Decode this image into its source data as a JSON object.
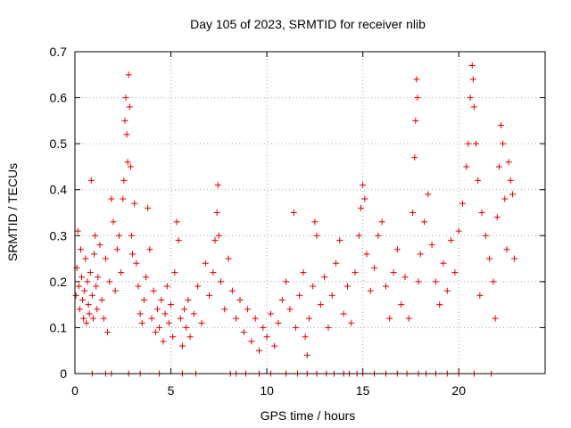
{
  "chart_data": {
    "type": "scatter",
    "title": "Day 105 of 2023, SRMTID for receiver nlib",
    "xlabel": "GPS time / hours",
    "ylabel": "SRMTID / TECUs",
    "xlim": [
      0,
      24.5
    ],
    "ylim": [
      0,
      0.7
    ],
    "xticks": [
      0,
      5,
      10,
      15,
      20
    ],
    "xtick_labels": [
      "0",
      "5",
      "10",
      "15",
      "20"
    ],
    "yticks": [
      0,
      0.1,
      0.2,
      0.3,
      0.4,
      0.5,
      0.6,
      0.7
    ],
    "ytick_labels": [
      "0",
      "0.1",
      "0.2",
      "0.3",
      "0.4",
      "0.5",
      "0.6",
      "0.7"
    ],
    "grid": true,
    "marker": "+",
    "color": "#e00000",
    "series": [
      {
        "name": "SRMTID",
        "points": [
          [
            0.05,
            0.17
          ],
          [
            0.1,
            0.23
          ],
          [
            0.15,
            0.31
          ],
          [
            0.2,
            0.19
          ],
          [
            0.25,
            0.14
          ],
          [
            0.3,
            0.27
          ],
          [
            0.35,
            0.21
          ],
          [
            0.4,
            0.16
          ],
          [
            0.45,
            0.12
          ],
          [
            0.5,
            0.18
          ],
          [
            0.55,
            0.25
          ],
          [
            0.6,
            0.11
          ],
          [
            0.65,
            0.2
          ],
          [
            0.7,
            0.15
          ],
          [
            0.75,
            0.13
          ],
          [
            0.8,
            0.22
          ],
          [
            0.85,
            0.42
          ],
          [
            0.9,
            0.17
          ],
          [
            0.95,
            0.12
          ],
          [
            1.0,
            0.26
          ],
          [
            1.05,
            0.3
          ],
          [
            1.1,
            0.19
          ],
          [
            1.15,
            0.14
          ],
          [
            1.2,
            0.21
          ],
          [
            1.3,
            0.28
          ],
          [
            1.4,
            0.16
          ],
          [
            1.5,
            0.12
          ],
          [
            1.6,
            0.25
          ],
          [
            1.7,
            0.09
          ],
          [
            1.8,
            0.2
          ],
          [
            1.9,
            0.38
          ],
          [
            2.0,
            0.33
          ],
          [
            2.1,
            0.18
          ],
          [
            2.2,
            0.27
          ],
          [
            2.3,
            0.3
          ],
          [
            2.4,
            0.22
          ],
          [
            2.5,
            0.38
          ],
          [
            2.55,
            0.42
          ],
          [
            2.6,
            0.55
          ],
          [
            2.65,
            0.6
          ],
          [
            2.7,
            0.52
          ],
          [
            2.75,
            0.46
          ],
          [
            2.8,
            0.65
          ],
          [
            2.85,
            0.58
          ],
          [
            2.9,
            0.45
          ],
          [
            2.95,
            0.3
          ],
          [
            3.0,
            0.26
          ],
          [
            3.1,
            0.37
          ],
          [
            3.2,
            0.24
          ],
          [
            3.3,
            0.19
          ],
          [
            3.4,
            0.13
          ],
          [
            3.5,
            0.11
          ],
          [
            3.6,
            0.16
          ],
          [
            3.7,
            0.21
          ],
          [
            3.8,
            0.36
          ],
          [
            3.9,
            0.27
          ],
          [
            4.0,
            0.12
          ],
          [
            4.1,
            0.18
          ],
          [
            4.2,
            0.09
          ],
          [
            4.3,
            0.14
          ],
          [
            4.4,
            0.1
          ],
          [
            4.5,
            0.16
          ],
          [
            4.6,
            0.07
          ],
          [
            4.7,
            0.13
          ],
          [
            4.8,
            0.19
          ],
          [
            4.9,
            0.11
          ],
          [
            5.0,
            0.15
          ],
          [
            5.1,
            0.08
          ],
          [
            5.2,
            0.22
          ],
          [
            5.3,
            0.33
          ],
          [
            5.4,
            0.29
          ],
          [
            5.5,
            0.12
          ],
          [
            5.6,
            0.06
          ],
          [
            5.7,
            0.14
          ],
          [
            5.8,
            0.1
          ],
          [
            5.9,
            0.16
          ],
          [
            6.0,
            0.08
          ],
          [
            6.2,
            0.13
          ],
          [
            6.4,
            0.19
          ],
          [
            6.6,
            0.11
          ],
          [
            6.8,
            0.24
          ],
          [
            7.0,
            0.17
          ],
          [
            7.2,
            0.22
          ],
          [
            7.3,
            0.29
          ],
          [
            7.4,
            0.35
          ],
          [
            7.45,
            0.41
          ],
          [
            7.5,
            0.3
          ],
          [
            7.6,
            0.2
          ],
          [
            7.8,
            0.14
          ],
          [
            8.0,
            0.25
          ],
          [
            8.2,
            0.18
          ],
          [
            8.4,
            0.12
          ],
          [
            8.6,
            0.16
          ],
          [
            8.8,
            0.09
          ],
          [
            9.0,
            0.14
          ],
          [
            9.2,
            0.07
          ],
          [
            9.4,
            0.12
          ],
          [
            9.6,
            0.05
          ],
          [
            9.8,
            0.1
          ],
          [
            10.0,
            0.08
          ],
          [
            10.2,
            0.13
          ],
          [
            10.4,
            0.06
          ],
          [
            10.6,
            0.11
          ],
          [
            10.8,
            0.16
          ],
          [
            11.0,
            0.2
          ],
          [
            11.2,
            0.14
          ],
          [
            11.4,
            0.35
          ],
          [
            11.5,
            0.1
          ],
          [
            11.7,
            0.17
          ],
          [
            11.9,
            0.22
          ],
          [
            12.0,
            0.08
          ],
          [
            12.1,
            0.04
          ],
          [
            12.2,
            0.12
          ],
          [
            12.4,
            0.19
          ],
          [
            12.5,
            0.33
          ],
          [
            12.6,
            0.3
          ],
          [
            12.8,
            0.15
          ],
          [
            13.0,
            0.21
          ],
          [
            13.2,
            0.1
          ],
          [
            13.4,
            0.17
          ],
          [
            13.6,
            0.24
          ],
          [
            13.8,
            0.29
          ],
          [
            14.0,
            0.13
          ],
          [
            14.2,
            0.19
          ],
          [
            14.4,
            0.11
          ],
          [
            14.6,
            0.22
          ],
          [
            14.8,
            0.3
          ],
          [
            14.9,
            0.36
          ],
          [
            15.0,
            0.41
          ],
          [
            15.1,
            0.38
          ],
          [
            15.2,
            0.26
          ],
          [
            15.4,
            0.18
          ],
          [
            15.6,
            0.23
          ],
          [
            15.8,
            0.3
          ],
          [
            16.0,
            0.33
          ],
          [
            16.2,
            0.19
          ],
          [
            16.4,
            0.12
          ],
          [
            16.6,
            0.22
          ],
          [
            16.8,
            0.27
          ],
          [
            17.0,
            0.15
          ],
          [
            17.2,
            0.21
          ],
          [
            17.4,
            0.12
          ],
          [
            17.6,
            0.35
          ],
          [
            17.7,
            0.47
          ],
          [
            17.75,
            0.55
          ],
          [
            17.8,
            0.64
          ],
          [
            17.85,
            0.6
          ],
          [
            17.9,
            0.2
          ],
          [
            18.0,
            0.26
          ],
          [
            18.2,
            0.33
          ],
          [
            18.4,
            0.39
          ],
          [
            18.6,
            0.28
          ],
          [
            18.8,
            0.2
          ],
          [
            19.0,
            0.15
          ],
          [
            19.2,
            0.24
          ],
          [
            19.4,
            0.18
          ],
          [
            19.6,
            0.29
          ],
          [
            19.8,
            0.22
          ],
          [
            20.0,
            0.31
          ],
          [
            20.2,
            0.37
          ],
          [
            20.4,
            0.45
          ],
          [
            20.5,
            0.5
          ],
          [
            20.6,
            0.6
          ],
          [
            20.7,
            0.67
          ],
          [
            20.75,
            0.64
          ],
          [
            20.8,
            0.58
          ],
          [
            20.9,
            0.5
          ],
          [
            21.0,
            0.42
          ],
          [
            21.1,
            0.17
          ],
          [
            21.2,
            0.35
          ],
          [
            21.4,
            0.3
          ],
          [
            21.6,
            0.25
          ],
          [
            21.8,
            0.2
          ],
          [
            21.9,
            0.12
          ],
          [
            22.0,
            0.34
          ],
          [
            22.1,
            0.45
          ],
          [
            22.2,
            0.54
          ],
          [
            22.3,
            0.5
          ],
          [
            22.4,
            0.38
          ],
          [
            22.5,
            0.27
          ],
          [
            22.6,
            0.46
          ],
          [
            22.7,
            0.42
          ],
          [
            22.8,
            0.39
          ],
          [
            22.9,
            0.25
          ],
          [
            0.9,
            0.0
          ],
          [
            1.6,
            0.0
          ],
          [
            1.9,
            0.0
          ],
          [
            2.8,
            0.0
          ],
          [
            3.4,
            0.0
          ],
          [
            4.4,
            0.0
          ],
          [
            5.6,
            0.0
          ],
          [
            6.3,
            0.0
          ],
          [
            8.1,
            0.0
          ],
          [
            8.4,
            0.0
          ],
          [
            8.9,
            0.0
          ],
          [
            9.6,
            0.0
          ],
          [
            10.2,
            0.0
          ],
          [
            11.0,
            0.0
          ],
          [
            11.6,
            0.0
          ],
          [
            12.1,
            0.0
          ],
          [
            12.6,
            0.0
          ],
          [
            13.1,
            0.0
          ],
          [
            13.5,
            0.0
          ],
          [
            14.0,
            0.0
          ],
          [
            14.3,
            0.0
          ],
          [
            14.7,
            0.0
          ],
          [
            15.0,
            0.0
          ],
          [
            15.6,
            0.0
          ],
          [
            16.2,
            0.0
          ],
          [
            16.8,
            0.0
          ],
          [
            17.3,
            0.0
          ],
          [
            17.9,
            0.0
          ],
          [
            18.3,
            0.0
          ],
          [
            18.8,
            0.0
          ],
          [
            19.4,
            0.0
          ],
          [
            20.0,
            0.0
          ],
          [
            20.8,
            0.0
          ],
          [
            21.7,
            0.0
          ]
        ]
      }
    ]
  }
}
